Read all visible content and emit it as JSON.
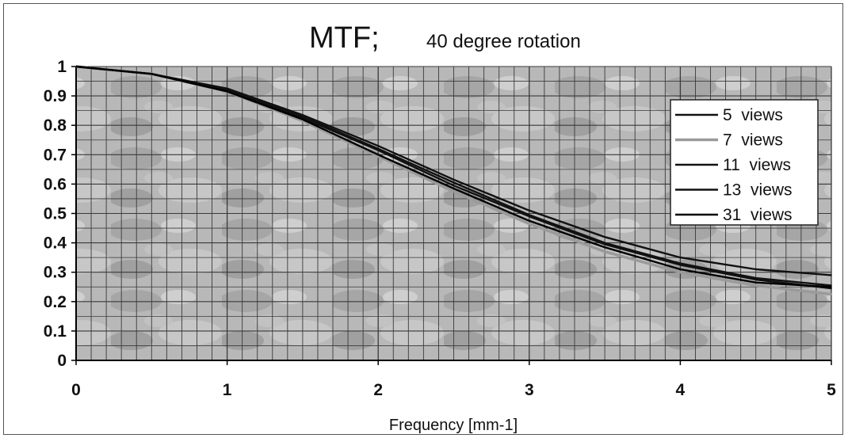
{
  "chart_data": {
    "type": "line",
    "title": "MTF;",
    "subtitle": "40 degree rotation",
    "xlabel": "Frequency  [mm-1]",
    "ylabel": "",
    "xlim": [
      0,
      5
    ],
    "ylim": [
      0,
      1
    ],
    "x_ticks": [
      "0",
      "1",
      "2",
      "3",
      "4",
      "5"
    ],
    "y_ticks": [
      "0",
      "0.1",
      "0.2",
      "0.3",
      "0.4",
      "0.5",
      "0.6",
      "0.7",
      "0.8",
      "0.9",
      "1"
    ],
    "grid": true,
    "legend_position": "top-right",
    "x": [
      0,
      0.5,
      1,
      1.5,
      2,
      2.5,
      3,
      3.5,
      4,
      4.5,
      5
    ],
    "series": [
      {
        "name": "5  views",
        "color": "#111111",
        "values": [
          1.0,
          0.975,
          0.925,
          0.835,
          0.73,
          0.615,
          0.51,
          0.42,
          0.35,
          0.31,
          0.29
        ]
      },
      {
        "name": "7  views",
        "color": "#9a9a9a",
        "values": [
          1.0,
          0.975,
          0.915,
          0.815,
          0.695,
          0.575,
          0.465,
          0.37,
          0.3,
          0.255,
          0.225
        ]
      },
      {
        "name": "11  views",
        "color": "#111111",
        "values": [
          1.0,
          0.975,
          0.92,
          0.825,
          0.715,
          0.595,
          0.49,
          0.395,
          0.325,
          0.275,
          0.245
        ]
      },
      {
        "name": "13  views",
        "color": "#111111",
        "values": [
          1.0,
          0.975,
          0.92,
          0.83,
          0.72,
          0.605,
          0.495,
          0.4,
          0.33,
          0.28,
          0.255
        ]
      },
      {
        "name": "31  views",
        "color": "#000000",
        "values": [
          1.0,
          0.975,
          0.915,
          0.82,
          0.7,
          0.585,
          0.475,
          0.385,
          0.31,
          0.265,
          0.25
        ]
      }
    ]
  }
}
